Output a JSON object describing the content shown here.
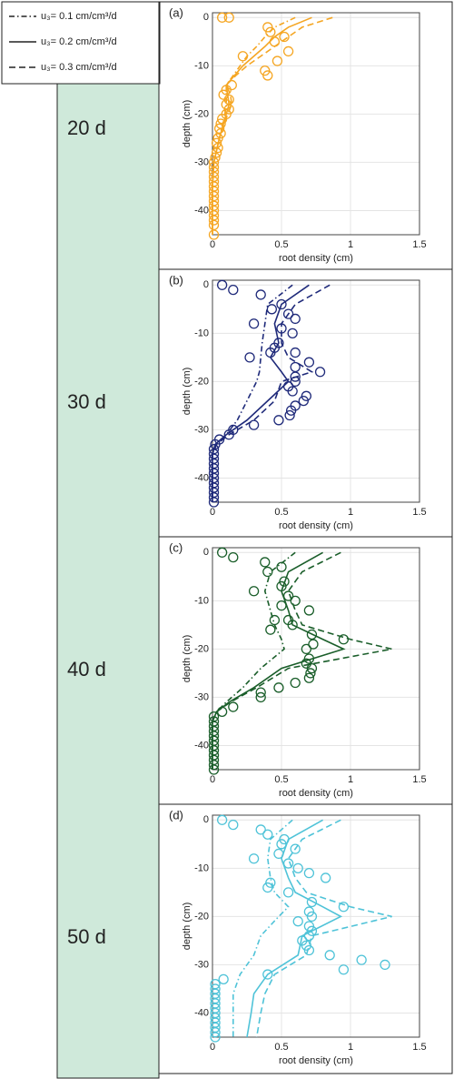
{
  "legend": [
    {
      "label": "u₃= 0.1 cm/cm³/d",
      "dash": "dash-dot"
    },
    {
      "label": "u₃= 0.2 cm/cm³/d",
      "dash": "solid"
    },
    {
      "label": "u₃= 0.3 cm/cm³/d",
      "dash": "dashed"
    }
  ],
  "rows": [
    "20 d",
    "30 d",
    "40 d",
    "50 d"
  ],
  "chart_data": [
    {
      "type": "line",
      "label": "(a)",
      "xlabel": "root density (cm)",
      "ylabel": "depth (cm)",
      "color": "#f5a623",
      "grid": true,
      "xlim": [
        0,
        1.5
      ],
      "xticks": [
        0,
        0.5,
        1,
        1.5
      ],
      "ylim": [
        -45,
        1
      ],
      "yticks": [
        0,
        -10,
        -20,
        -30,
        -40
      ],
      "depths": [
        0,
        -2,
        -4,
        -6,
        -8,
        -10,
        -12,
        -14,
        -16,
        -18,
        -20,
        -25,
        -30,
        -35,
        -40,
        -45
      ],
      "series": [
        {
          "dash": "dash-dot",
          "values": [
            0.6,
            0.45,
            0.38,
            0.32,
            0.25,
            0.2,
            0.15,
            0.1,
            0.1,
            0.1,
            0.09,
            0.05,
            0.01,
            0,
            0,
            0
          ]
        },
        {
          "dash": "solid",
          "values": [
            0.72,
            0.55,
            0.45,
            0.38,
            0.3,
            0.22,
            0.16,
            0.1,
            0.11,
            0.12,
            0.1,
            0.05,
            0.01,
            0,
            0,
            0
          ]
        },
        {
          "dash": "dashed",
          "values": [
            0.87,
            0.65,
            0.55,
            0.45,
            0.35,
            0.25,
            0.17,
            0.1,
            0.13,
            0.14,
            0.11,
            0.05,
            0.01,
            0,
            0,
            0
          ]
        }
      ],
      "points": {
        "x": [
          0.07,
          0.12,
          0.4,
          0.42,
          0.52,
          0.45,
          0.55,
          0.47,
          0.22,
          0.38,
          0.4,
          0.14,
          0.1,
          0.08,
          0.12,
          0.1,
          0.12,
          0.1,
          0.07,
          0.06,
          0.05,
          0.06,
          0.04,
          0.03,
          0.04,
          0.03,
          0.02,
          0.01,
          0.01,
          0.01,
          0.01,
          0.01,
          0.01,
          0.01,
          0.01,
          0.01,
          0.01,
          0.01,
          0.01,
          0.01,
          0.01,
          0.01
        ],
        "y": [
          0,
          0,
          -2,
          -3,
          -4,
          -5,
          -7,
          -9,
          -8,
          -11,
          -12,
          -14,
          -15,
          -16,
          -17,
          -18,
          -19,
          -20,
          -21,
          -22,
          -23,
          -24,
          -25,
          -26,
          -27,
          -28,
          -29,
          -30,
          -31,
          -32,
          -33,
          -34,
          -35,
          -36,
          -37,
          -38,
          -39,
          -40,
          -41,
          -42,
          -43,
          -45
        ]
      }
    },
    {
      "type": "line",
      "label": "(b)",
      "xlabel": "root density (cm)",
      "ylabel": "depth (cm)",
      "color": "#1f2a7a",
      "grid": true,
      "xlim": [
        0,
        1.5
      ],
      "xticks": [
        0,
        0.5,
        1,
        1.5
      ],
      "ylim": [
        -45,
        1
      ],
      "yticks": [
        0,
        -10,
        -20,
        -30,
        -40
      ],
      "depths": [
        0,
        -4,
        -8,
        -12,
        -15,
        -18,
        -20,
        -24,
        -28,
        -31,
        -33,
        -35,
        -40,
        -45
      ],
      "series": [
        {
          "dash": "dash-dot",
          "values": [
            0.58,
            0.4,
            0.38,
            0.36,
            0.35,
            0.34,
            0.32,
            0.25,
            0.18,
            0.1,
            0.03,
            0,
            0,
            0
          ]
        },
        {
          "dash": "solid",
          "values": [
            0.7,
            0.5,
            0.45,
            0.48,
            0.42,
            0.5,
            0.55,
            0.4,
            0.25,
            0.1,
            0.02,
            0,
            0,
            0
          ]
        },
        {
          "dash": "dashed",
          "values": [
            0.85,
            0.6,
            0.5,
            0.5,
            0.55,
            0.72,
            0.5,
            0.45,
            0.3,
            0.12,
            0.03,
            0,
            0,
            0
          ]
        }
      ],
      "points": {
        "x": [
          0.07,
          0.15,
          0.35,
          0.5,
          0.43,
          0.55,
          0.6,
          0.3,
          0.5,
          0.58,
          0.48,
          0.45,
          0.42,
          0.6,
          0.7,
          0.27,
          0.6,
          0.78,
          0.6,
          0.6,
          0.55,
          0.58,
          0.68,
          0.66,
          0.6,
          0.57,
          0.56,
          0.3,
          0.48,
          0.15,
          0.12,
          0.05,
          0.02,
          0.01,
          0.01,
          0.01,
          0.01,
          0.01,
          0.01,
          0.01,
          0.01,
          0.01,
          0.01,
          0.01,
          0.01
        ],
        "y": [
          0,
          -1,
          -2,
          -4,
          -5,
          -6,
          -7,
          -8,
          -9,
          -10,
          -12,
          -13,
          -14,
          -14,
          -16,
          -15,
          -17,
          -18,
          -19,
          -20,
          -21,
          -22,
          -23,
          -24,
          -25,
          -26,
          -27,
          -29,
          -28,
          -30,
          -31,
          -32,
          -33,
          -34,
          -35,
          -36,
          -37,
          -38,
          -39,
          -40,
          -41,
          -42,
          -43,
          -44,
          -45
        ]
      }
    },
    {
      "type": "line",
      "label": "(c)",
      "xlabel": "root density (cm)",
      "ylabel": "depth (cm)",
      "color": "#1a5e2a",
      "grid": true,
      "xlim": [
        0,
        1.5
      ],
      "xticks": [
        0,
        0.5,
        1,
        1.5
      ],
      "ylim": [
        -45,
        1
      ],
      "yticks": [
        0,
        -10,
        -20,
        -30,
        -40
      ],
      "depths": [
        0,
        -4,
        -8,
        -12,
        -15,
        -18,
        -20,
        -24,
        -28,
        -31,
        -33,
        -35,
        -45
      ],
      "series": [
        {
          "dash": "dash-dot",
          "values": [
            0.6,
            0.42,
            0.38,
            0.42,
            0.45,
            0.5,
            0.52,
            0.35,
            0.22,
            0.1,
            0.03,
            0,
            0
          ]
        },
        {
          "dash": "solid",
          "values": [
            0.8,
            0.55,
            0.5,
            0.55,
            0.58,
            0.8,
            0.95,
            0.5,
            0.3,
            0.12,
            0.03,
            0,
            0
          ]
        },
        {
          "dash": "dashed",
          "values": [
            0.93,
            0.65,
            0.55,
            0.6,
            0.65,
            1.0,
            1.3,
            0.55,
            0.32,
            0.13,
            0.03,
            0,
            0
          ]
        }
      ],
      "points": {
        "x": [
          0.07,
          0.15,
          0.38,
          0.5,
          0.4,
          0.52,
          0.5,
          0.3,
          0.55,
          0.6,
          0.5,
          0.7,
          0.45,
          0.55,
          0.58,
          0.42,
          0.72,
          0.95,
          0.73,
          0.68,
          0.7,
          0.68,
          0.72,
          0.71,
          0.7,
          0.6,
          0.48,
          0.35,
          0.35,
          0.15,
          0.07,
          0.01,
          0.01,
          0.01,
          0.01,
          0.01,
          0.01,
          0.01,
          0.01,
          0.01,
          0.01,
          0.01,
          0.01
        ],
        "y": [
          0,
          -1,
          -2,
          -3,
          -4,
          -6,
          -7,
          -8,
          -9,
          -10,
          -11,
          -12,
          -14,
          -14,
          -15,
          -16,
          -17,
          -18,
          -19,
          -20,
          -22,
          -23,
          -24,
          -25,
          -26,
          -27,
          -28,
          -29,
          -30,
          -32,
          -33,
          -34,
          -35,
          -36,
          -37,
          -38,
          -39,
          -40,
          -41,
          -42,
          -43,
          -44,
          -45
        ]
      }
    },
    {
      "type": "line",
      "label": "(d)",
      "xlabel": "root density (cm)",
      "ylabel": "depth (cm)",
      "color": "#4fc3d8",
      "grid": true,
      "xlim": [
        0,
        1.5
      ],
      "xticks": [
        0,
        0.5,
        1,
        1.5
      ],
      "ylim": [
        -45,
        1
      ],
      "yticks": [
        0,
        -10,
        -20,
        -30,
        -40
      ],
      "depths": [
        0,
        -4,
        -8,
        -12,
        -15,
        -18,
        -20,
        -24,
        -28,
        -32,
        -36,
        -40,
        -45
      ],
      "series": [
        {
          "dash": "dash-dot",
          "values": [
            0.58,
            0.42,
            0.4,
            0.42,
            0.45,
            0.55,
            0.48,
            0.35,
            0.3,
            0.2,
            0.15,
            0.15,
            0.15
          ]
        },
        {
          "dash": "solid",
          "values": [
            0.8,
            0.55,
            0.5,
            0.55,
            0.6,
            0.8,
            0.93,
            0.65,
            0.62,
            0.4,
            0.3,
            0.28,
            0.25
          ]
        },
        {
          "dash": "dashed",
          "values": [
            0.93,
            0.65,
            0.55,
            0.6,
            0.68,
            1.0,
            1.3,
            0.72,
            0.68,
            0.45,
            0.38,
            0.35,
            0.32
          ]
        }
      ],
      "points": {
        "x": [
          0.07,
          0.15,
          0.35,
          0.4,
          0.52,
          0.5,
          0.6,
          0.48,
          0.3,
          0.55,
          0.62,
          0.7,
          0.82,
          0.42,
          0.4,
          0.55,
          0.72,
          0.95,
          0.7,
          0.72,
          0.62,
          0.7,
          0.72,
          0.7,
          0.65,
          0.68,
          0.7,
          0.85,
          1.08,
          1.25,
          0.95,
          0.4,
          0.08,
          0.02,
          0.02,
          0.02,
          0.02,
          0.02,
          0.02,
          0.02,
          0.02,
          0.02,
          0.02,
          0.02,
          0.02
        ],
        "y": [
          0,
          -1,
          -2,
          -3,
          -4,
          -5,
          -6,
          -7,
          -8,
          -9,
          -10,
          -11,
          -12,
          -13,
          -14,
          -15,
          -17,
          -18,
          -19,
          -20,
          -21,
          -22,
          -23,
          -24,
          -25,
          -26,
          -27,
          -28,
          -29,
          -30,
          -31,
          -32,
          -33,
          -34,
          -35,
          -36,
          -37,
          -38,
          -39,
          -40,
          -41,
          -42,
          -43,
          -44,
          -45
        ]
      }
    }
  ]
}
